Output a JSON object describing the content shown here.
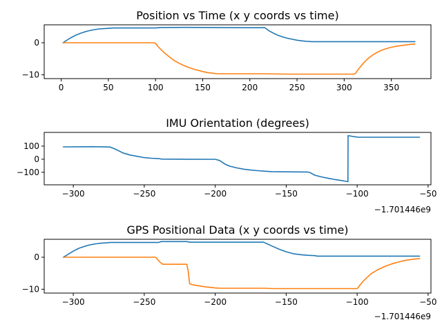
{
  "colors": {
    "series_0": "#1f77b4",
    "series_1": "#ff7f0e"
  },
  "chart_data": [
    {
      "type": "line",
      "title": "Position vs Time (x y coords vs time)",
      "xlim": [
        -18,
        392
      ],
      "ylim": [
        -11.2,
        5.6
      ],
      "xticks": [
        0,
        50,
        100,
        150,
        200,
        250,
        300,
        350
      ],
      "xtick_labels": [
        "0",
        "50",
        "100",
        "150",
        "200",
        "250",
        "300",
        "350"
      ],
      "yticks": [
        0,
        -10
      ],
      "ytick_labels": [
        "0",
        "−10"
      ],
      "offset_label": "",
      "series": [
        {
          "color": "#1f77b4",
          "x": [
            2,
            5,
            10,
            15,
            20,
            25,
            30,
            35,
            40,
            45,
            50,
            55,
            60,
            100,
            105,
            130,
            160,
            200,
            216,
            220,
            225,
            230,
            235,
            240,
            245,
            250,
            255,
            260,
            263,
            265,
            300,
            375
          ],
          "y": [
            0,
            0.6,
            1.5,
            2.3,
            2.9,
            3.4,
            3.8,
            4.1,
            4.3,
            4.4,
            4.5,
            4.6,
            4.6,
            4.6,
            4.75,
            4.8,
            4.75,
            4.7,
            4.7,
            3.8,
            3.0,
            2.3,
            1.8,
            1.4,
            1.1,
            0.8,
            0.6,
            0.45,
            0.4,
            0.35,
            0.35,
            0.35
          ]
        },
        {
          "color": "#ff7f0e",
          "x": [
            2,
            50,
            98,
            100,
            103,
            106,
            110,
            115,
            120,
            125,
            130,
            135,
            140,
            145,
            150,
            155,
            160,
            165,
            180,
            215,
            240,
            270,
            300,
            310,
            312,
            315,
            320,
            325,
            330,
            335,
            340,
            345,
            350,
            355,
            360,
            365,
            370,
            375
          ],
          "y": [
            0,
            0,
            0,
            -0.2,
            -1.3,
            -2.2,
            -3.3,
            -4.5,
            -5.6,
            -6.4,
            -7.1,
            -7.7,
            -8.2,
            -8.6,
            -9.0,
            -9.3,
            -9.5,
            -9.7,
            -9.7,
            -9.7,
            -9.8,
            -9.8,
            -9.8,
            -9.8,
            -9.6,
            -8.3,
            -6.5,
            -5.0,
            -3.9,
            -3.0,
            -2.3,
            -1.8,
            -1.4,
            -1.1,
            -0.9,
            -0.7,
            -0.5,
            -0.4
          ]
        }
      ]
    },
    {
      "type": "line",
      "title": "IMU Orientation (degrees)",
      "xlim": [
        -320.5,
        -48
      ],
      "ylim": [
        -196,
        205
      ],
      "xticks": [
        -300,
        -250,
        -200,
        -150,
        -100,
        -50
      ],
      "xtick_labels": [
        "−300",
        "−250",
        "−200",
        "−150",
        "−100",
        "−50"
      ],
      "yticks": [
        100,
        0,
        -100
      ],
      "ytick_labels": [
        "100",
        "0",
        "−100"
      ],
      "offset_label": "−1.701446e9",
      "series": [
        {
          "color": "#1f77b4",
          "x": [
            -307,
            -290,
            -286,
            -274,
            -270,
            -265,
            -260,
            -255,
            -250,
            -245,
            -240,
            -238,
            -220,
            -200,
            -197,
            -193,
            -190,
            -185,
            -180,
            -175,
            -170,
            -165,
            -160,
            -150,
            -135,
            -133,
            -130,
            -125,
            -120,
            -115,
            -110,
            -106.5,
            -106.4,
            -104,
            -101,
            -99,
            -80,
            -56
          ],
          "y": [
            94,
            95,
            96,
            93,
            75,
            48,
            32,
            22,
            12,
            7,
            5,
            1,
            0,
            -1,
            -10,
            -38,
            -53,
            -66,
            -76,
            -83,
            -88,
            -92,
            -95,
            -97,
            -98,
            -103,
            -122,
            -136,
            -147,
            -157,
            -165,
            -172,
            180,
            176,
            170,
            168,
            168,
            168
          ]
        }
      ]
    },
    {
      "type": "line",
      "title": "GPS Positional Data (x y coords vs time)",
      "xlim": [
        -320.5,
        -48
      ],
      "ylim": [
        -11.2,
        5.6
      ],
      "xticks": [
        -300,
        -250,
        -200,
        -150,
        -100,
        -50
      ],
      "xtick_labels": [
        "−300",
        "−250",
        "−200",
        "−150",
        "−100",
        "−50"
      ],
      "yticks": [
        0,
        -10
      ],
      "ytick_labels": [
        "0",
        "−10"
      ],
      "offset_label": "−1.701446e9",
      "series": [
        {
          "color": "#1f77b4",
          "x": [
            -307,
            -304,
            -300,
            -296,
            -292,
            -288,
            -284,
            -280,
            -276,
            -274,
            -240,
            -238,
            -220,
            -218,
            -200,
            -166,
            -164,
            -160,
            -155,
            -150,
            -145,
            -140,
            -135,
            -130,
            -128,
            -100,
            -56
          ],
          "y": [
            0,
            0.8,
            1.9,
            2.8,
            3.4,
            3.9,
            4.2,
            4.4,
            4.5,
            4.6,
            4.6,
            4.9,
            4.9,
            4.7,
            4.7,
            4.7,
            4.3,
            3.5,
            2.5,
            1.7,
            1.1,
            0.8,
            0.6,
            0.5,
            0.35,
            0.35,
            0.35
          ]
        },
        {
          "color": "#ff7f0e",
          "x": [
            -307,
            -260,
            -242,
            -241,
            -239,
            -237,
            -220,
            -219,
            -218,
            -216,
            -212,
            -208,
            -204,
            -200,
            -196,
            -190,
            -170,
            -165,
            -160,
            -150,
            -120,
            -100,
            -99.5,
            -98,
            -96,
            -93,
            -90,
            -85,
            -80,
            -75,
            -70,
            -65,
            -60,
            -56
          ],
          "y": [
            0,
            0,
            0,
            -0.5,
            -1.5,
            -2.2,
            -2.2,
            -4.5,
            -8.3,
            -8.6,
            -8.9,
            -9.2,
            -9.4,
            -9.6,
            -9.7,
            -9.7,
            -9.7,
            -9.7,
            -9.8,
            -9.8,
            -9.8,
            -9.8,
            -9.6,
            -8.7,
            -7.6,
            -6.3,
            -5.1,
            -3.8,
            -2.8,
            -2.0,
            -1.4,
            -0.9,
            -0.6,
            -0.4
          ]
        }
      ]
    }
  ]
}
